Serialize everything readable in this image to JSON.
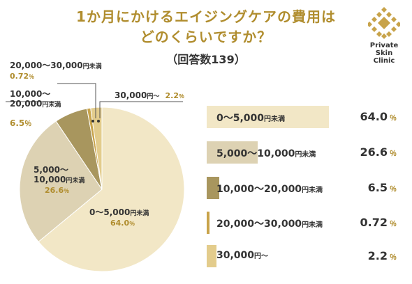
{
  "title_line1": "1か月にかけるエイジングケアの費用は",
  "title_line2": "どのくらいですか？",
  "subtitle": "（回答数139）",
  "logo": {
    "line1": "Private",
    "line2": "Skin",
    "line3": "Clinic"
  },
  "colors": {
    "accent": "#b08d2e",
    "slices": [
      "#f2e7c6",
      "#ddd2b3",
      "#a8965e",
      "#c8a34a",
      "#e3cc8c"
    ]
  },
  "pie_labels": {
    "s0": {
      "a": "0～5,000",
      "yen": "円未満",
      "pct": "64.0",
      "unit": "％"
    },
    "s1": {
      "a": "5,000～",
      "b": "10,000",
      "yen": "円未満",
      "pct": "26.6",
      "unit": "％"
    },
    "s2": {
      "a": "10,000～",
      "b": "20,000",
      "yen": "円未満",
      "pct": "6.5",
      "unit": "％"
    },
    "s3": {
      "a": "20,000～30,000",
      "yen": "円未満",
      "pct": "0.72",
      "unit": "％"
    },
    "s4": {
      "a": "30,000",
      "yen": "円～",
      "pct": "2.2",
      "unit": "％"
    }
  },
  "legend": [
    {
      "label": "0～5,000",
      "yen": "円未満",
      "value": "64.0",
      "unit": "％"
    },
    {
      "label": "5,000～10,000",
      "yen": "円未満",
      "value": "26.6",
      "unit": "％"
    },
    {
      "label": "10,000～20,000",
      "yen": "円未満",
      "value": "6.5",
      "unit": "％"
    },
    {
      "label": "20,000～30,000",
      "yen": "円未満",
      "value": "0.72",
      "unit": "％"
    },
    {
      "label": "30,000",
      "yen": "円～",
      "value": "2.2",
      "unit": "％"
    }
  ],
  "chart_data": {
    "type": "pie",
    "title": "1か月にかけるエイジングケアの費用はどのくらいですか？",
    "subtitle": "（回答数139）",
    "categories": [
      "0～5,000円未満",
      "5,000～10,000円未満",
      "10,000～20,000円未満",
      "20,000～30,000円未満",
      "30,000円～"
    ],
    "values": [
      64.0,
      26.6,
      6.5,
      0.72,
      2.2
    ],
    "unit": "%",
    "start": "top",
    "direction": "clockwise"
  }
}
